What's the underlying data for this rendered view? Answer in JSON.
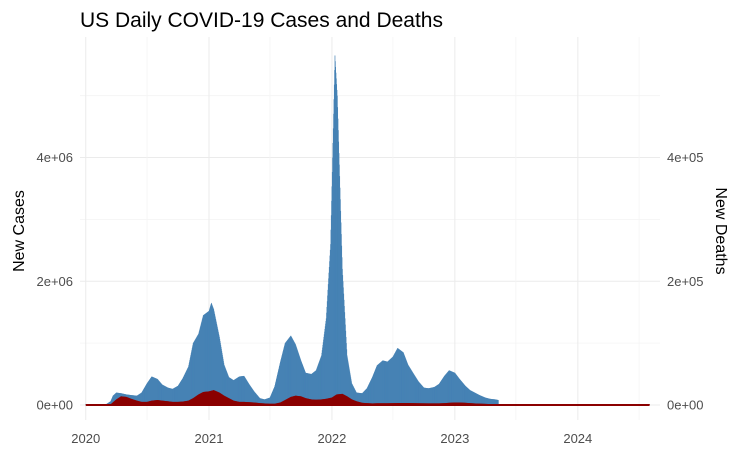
{
  "chart_data": {
    "type": "bar",
    "title": "US Daily COVID-19 Cases and Deaths",
    "xlabel": "",
    "ylabel": "New Cases",
    "y2label": "New Deaths",
    "x_ticks": [
      "2020",
      "2021",
      "2022",
      "2023",
      "2024"
    ],
    "y_ticks": [
      "0e+00",
      "2e+06",
      "4e+06"
    ],
    "y2_ticks": [
      "0e+00",
      "2e+05",
      "4e+05"
    ],
    "xlim": [
      "2019-12-15",
      "2024-09-01"
    ],
    "ylim": [
      0,
      5900000
    ],
    "y2lim": [
      0,
      590000
    ],
    "grid": true,
    "colors": {
      "cases": "#4682b4",
      "deaths": "#8b0000"
    },
    "series": [
      {
        "key": "cases",
        "values": [
          [
            "2020-01-01",
            5000
          ],
          [
            "2020-01-15",
            5000
          ],
          [
            "2020-02-01",
            5000
          ],
          [
            "2020-02-15",
            5000
          ],
          [
            "2020-03-01",
            10000
          ],
          [
            "2020-03-15",
            60000
          ],
          [
            "2020-03-22",
            150000
          ],
          [
            "2020-04-01",
            200000
          ],
          [
            "2020-04-15",
            190000
          ],
          [
            "2020-05-01",
            170000
          ],
          [
            "2020-05-15",
            160000
          ],
          [
            "2020-06-01",
            150000
          ],
          [
            "2020-06-15",
            200000
          ],
          [
            "2020-07-01",
            350000
          ],
          [
            "2020-07-15",
            460000
          ],
          [
            "2020-08-01",
            420000
          ],
          [
            "2020-08-15",
            330000
          ],
          [
            "2020-09-01",
            280000
          ],
          [
            "2020-09-15",
            260000
          ],
          [
            "2020-10-01",
            310000
          ],
          [
            "2020-10-15",
            430000
          ],
          [
            "2020-11-01",
            620000
          ],
          [
            "2020-11-15",
            1000000
          ],
          [
            "2020-12-01",
            1150000
          ],
          [
            "2020-12-15",
            1450000
          ],
          [
            "2021-01-01",
            1520000
          ],
          [
            "2021-01-08",
            1650000
          ],
          [
            "2021-01-15",
            1550000
          ],
          [
            "2021-02-01",
            1100000
          ],
          [
            "2021-02-15",
            650000
          ],
          [
            "2021-03-01",
            450000
          ],
          [
            "2021-03-15",
            400000
          ],
          [
            "2021-04-01",
            460000
          ],
          [
            "2021-04-15",
            470000
          ],
          [
            "2021-05-01",
            330000
          ],
          [
            "2021-05-15",
            220000
          ],
          [
            "2021-06-01",
            110000
          ],
          [
            "2021-06-15",
            90000
          ],
          [
            "2021-07-01",
            120000
          ],
          [
            "2021-07-15",
            300000
          ],
          [
            "2021-08-01",
            700000
          ],
          [
            "2021-08-15",
            1000000
          ],
          [
            "2021-09-01",
            1120000
          ],
          [
            "2021-09-15",
            980000
          ],
          [
            "2021-10-01",
            720000
          ],
          [
            "2021-10-15",
            520000
          ],
          [
            "2021-11-01",
            500000
          ],
          [
            "2021-11-15",
            560000
          ],
          [
            "2021-12-01",
            800000
          ],
          [
            "2021-12-15",
            1400000
          ],
          [
            "2021-12-28",
            2600000
          ],
          [
            "2022-01-03",
            4000000
          ],
          [
            "2022-01-10",
            5650000
          ],
          [
            "2022-01-17",
            5000000
          ],
          [
            "2022-01-24",
            3700000
          ],
          [
            "2022-02-01",
            2200000
          ],
          [
            "2022-02-15",
            800000
          ],
          [
            "2022-03-01",
            350000
          ],
          [
            "2022-03-15",
            200000
          ],
          [
            "2022-04-01",
            190000
          ],
          [
            "2022-04-15",
            270000
          ],
          [
            "2022-05-01",
            450000
          ],
          [
            "2022-05-15",
            640000
          ],
          [
            "2022-06-01",
            720000
          ],
          [
            "2022-06-15",
            700000
          ],
          [
            "2022-07-01",
            780000
          ],
          [
            "2022-07-15",
            920000
          ],
          [
            "2022-08-01",
            850000
          ],
          [
            "2022-08-15",
            650000
          ],
          [
            "2022-09-01",
            500000
          ],
          [
            "2022-09-15",
            380000
          ],
          [
            "2022-10-01",
            280000
          ],
          [
            "2022-10-15",
            270000
          ],
          [
            "2022-11-01",
            290000
          ],
          [
            "2022-11-15",
            340000
          ],
          [
            "2022-12-01",
            470000
          ],
          [
            "2022-12-15",
            560000
          ],
          [
            "2023-01-01",
            520000
          ],
          [
            "2023-01-15",
            420000
          ],
          [
            "2023-02-01",
            310000
          ],
          [
            "2023-02-15",
            240000
          ],
          [
            "2023-03-01",
            200000
          ],
          [
            "2023-03-15",
            160000
          ],
          [
            "2023-04-01",
            120000
          ],
          [
            "2023-04-15",
            100000
          ],
          [
            "2023-05-01",
            90000
          ],
          [
            "2023-05-10",
            80000
          ]
        ]
      },
      {
        "key": "deaths",
        "values": [
          [
            "2020-03-01",
            0
          ],
          [
            "2020-03-15",
            1000
          ],
          [
            "2020-04-01",
            9000
          ],
          [
            "2020-04-15",
            14000
          ],
          [
            "2020-05-01",
            13000
          ],
          [
            "2020-05-15",
            10000
          ],
          [
            "2020-06-01",
            7000
          ],
          [
            "2020-06-15",
            5000
          ],
          [
            "2020-07-01",
            5000
          ],
          [
            "2020-07-15",
            7000
          ],
          [
            "2020-08-01",
            8000
          ],
          [
            "2020-08-15",
            7000
          ],
          [
            "2020-09-01",
            6000
          ],
          [
            "2020-09-15",
            5000
          ],
          [
            "2020-10-01",
            5000
          ],
          [
            "2020-10-15",
            5500
          ],
          [
            "2020-11-01",
            7000
          ],
          [
            "2020-11-15",
            11000
          ],
          [
            "2020-12-01",
            17000
          ],
          [
            "2020-12-15",
            21000
          ],
          [
            "2021-01-01",
            22000
          ],
          [
            "2021-01-15",
            24000
          ],
          [
            "2021-02-01",
            20000
          ],
          [
            "2021-02-15",
            15000
          ],
          [
            "2021-03-01",
            11000
          ],
          [
            "2021-03-15",
            7000
          ],
          [
            "2021-04-01",
            5000
          ],
          [
            "2021-04-15",
            5000
          ],
          [
            "2021-05-01",
            4500
          ],
          [
            "2021-05-15",
            4000
          ],
          [
            "2021-06-01",
            3000
          ],
          [
            "2021-06-15",
            2500
          ],
          [
            "2021-07-01",
            2000
          ],
          [
            "2021-07-15",
            2000
          ],
          [
            "2021-08-01",
            4000
          ],
          [
            "2021-08-15",
            8000
          ],
          [
            "2021-09-01",
            13000
          ],
          [
            "2021-09-15",
            15000
          ],
          [
            "2021-10-01",
            14000
          ],
          [
            "2021-10-15",
            11000
          ],
          [
            "2021-11-01",
            9000
          ],
          [
            "2021-11-15",
            8500
          ],
          [
            "2021-12-01",
            9000
          ],
          [
            "2021-12-15",
            10000
          ],
          [
            "2022-01-01",
            12000
          ],
          [
            "2022-01-15",
            17000
          ],
          [
            "2022-02-01",
            18000
          ],
          [
            "2022-02-15",
            14000
          ],
          [
            "2022-03-01",
            9000
          ],
          [
            "2022-03-15",
            6000
          ],
          [
            "2022-04-01",
            3500
          ],
          [
            "2022-04-15",
            3000
          ],
          [
            "2022-05-01",
            2500
          ],
          [
            "2022-05-15",
            2800
          ],
          [
            "2022-06-01",
            2800
          ],
          [
            "2022-06-15",
            2800
          ],
          [
            "2022-07-01",
            3000
          ],
          [
            "2022-07-15",
            3200
          ],
          [
            "2022-08-01",
            3200
          ],
          [
            "2022-08-15",
            3200
          ],
          [
            "2022-09-01",
            3000
          ],
          [
            "2022-09-15",
            2800
          ],
          [
            "2022-10-01",
            2700
          ],
          [
            "2022-10-15",
            2600
          ],
          [
            "2022-11-01",
            2600
          ],
          [
            "2022-11-15",
            2600
          ],
          [
            "2022-12-01",
            3000
          ],
          [
            "2022-12-15",
            3500
          ],
          [
            "2023-01-01",
            4000
          ],
          [
            "2023-01-15",
            4000
          ],
          [
            "2023-02-01",
            3500
          ],
          [
            "2023-02-15",
            3000
          ],
          [
            "2023-03-01",
            2500
          ],
          [
            "2023-03-15",
            2200
          ],
          [
            "2023-04-01",
            1800
          ],
          [
            "2023-04-15",
            1500
          ],
          [
            "2023-05-01",
            1200
          ],
          [
            "2023-05-15",
            1000
          ],
          [
            "2023-06-01",
            800
          ],
          [
            "2023-07-01",
            600
          ],
          [
            "2023-08-01",
            700
          ],
          [
            "2023-09-01",
            900
          ],
          [
            "2023-10-01",
            800
          ],
          [
            "2023-11-01",
            900
          ],
          [
            "2023-12-01",
            1200
          ],
          [
            "2024-01-01",
            1600
          ],
          [
            "2024-02-01",
            1500
          ],
          [
            "2024-03-01",
            1000
          ],
          [
            "2024-04-01",
            600
          ],
          [
            "2024-05-01",
            400
          ],
          [
            "2024-06-01",
            400
          ],
          [
            "2024-07-01",
            500
          ],
          [
            "2024-08-01",
            500
          ]
        ]
      }
    ]
  }
}
